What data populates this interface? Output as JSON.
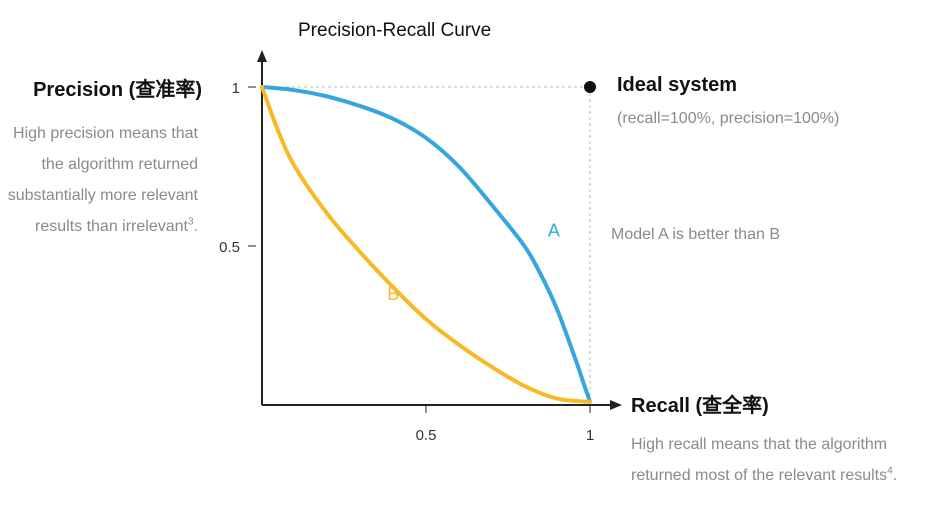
{
  "chart_data": {
    "type": "line",
    "title": "Precision-Recall Curve",
    "xlabel": "Recall (查全率)",
    "ylabel": "Precision (查准率)",
    "xlim": [
      0,
      1
    ],
    "ylim": [
      0,
      1
    ],
    "x_ticks": [
      "0.5",
      "1"
    ],
    "y_ticks": [
      "1",
      "0.5"
    ],
    "grid": false,
    "series": [
      {
        "name": "A",
        "color": "#35a7dd",
        "points": [
          [
            0,
            1
          ],
          [
            0.1,
            0.99
          ],
          [
            0.2,
            0.97
          ],
          [
            0.3,
            0.94
          ],
          [
            0.4,
            0.9
          ],
          [
            0.5,
            0.84
          ],
          [
            0.6,
            0.75
          ],
          [
            0.7,
            0.63
          ],
          [
            0.8,
            0.5
          ],
          [
            0.85,
            0.41
          ],
          [
            0.9,
            0.3
          ],
          [
            0.95,
            0.16
          ],
          [
            0.98,
            0.07
          ],
          [
            1,
            0.01
          ]
        ]
      },
      {
        "name": "B",
        "color": "#f7b924",
        "points": [
          [
            0,
            1
          ],
          [
            0.05,
            0.86
          ],
          [
            0.1,
            0.75
          ],
          [
            0.2,
            0.6
          ],
          [
            0.3,
            0.48
          ],
          [
            0.4,
            0.37
          ],
          [
            0.5,
            0.27
          ],
          [
            0.6,
            0.19
          ],
          [
            0.7,
            0.12
          ],
          [
            0.8,
            0.06
          ],
          [
            0.9,
            0.02
          ],
          [
            1,
            0.01
          ]
        ]
      }
    ],
    "ideal_point": {
      "x": 1,
      "y": 1,
      "label": "Ideal system",
      "sublabel": "(recall=100%, precision=100%)"
    },
    "annotation": "Model A is better than B"
  },
  "descriptions": {
    "precision": "High precision means that the algorithm returned substantially more relevant results than irrelevant",
    "precision_ref": "3",
    "precision_end": ".",
    "recall": "High recall means that the algorithm returned most of the relevant results",
    "recall_ref": "4",
    "recall_end": "."
  },
  "colors": {
    "axis": "#222222",
    "guide": "#bbbbbb",
    "muted_text": "#8a8a8a"
  }
}
